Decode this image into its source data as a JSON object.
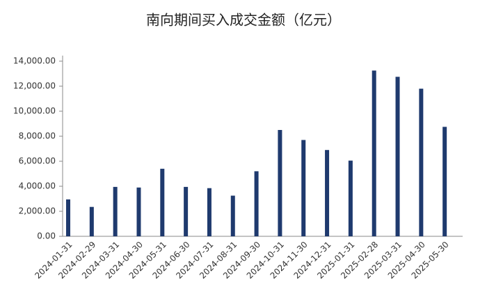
{
  "chart_data": {
    "type": "bar",
    "title": "南向期间买入成交金额（亿元）",
    "categories": [
      "2024-01-31",
      "2024-02-29",
      "2024-03-31",
      "2024-04-30",
      "2024-05-31",
      "2024-06-30",
      "2024-07-31",
      "2024-08-31",
      "2024-09-30",
      "2024-10-31",
      "2024-11-30",
      "2024-12-31",
      "2025-01-31",
      "2025-02-28",
      "2025-03-31",
      "2025-04-30",
      "2025-05-30"
    ],
    "values": [
      2950,
      2350,
      3950,
      3900,
      5400,
      3950,
      3850,
      3250,
      5200,
      8500,
      7700,
      6900,
      6050,
      13250,
      12750,
      11800,
      8750
    ],
    "color": "#1f3a6e",
    "ylim": [
      0,
      14000
    ],
    "yticks": [
      {
        "value": 0,
        "label": "0.00"
      },
      {
        "value": 2000,
        "label": "2,000.00"
      },
      {
        "value": 4000,
        "label": "4,000.00"
      },
      {
        "value": 6000,
        "label": "6,000.00"
      },
      {
        "value": 8000,
        "label": "8,000.00"
      },
      {
        "value": 10000,
        "label": "10,000.00"
      },
      {
        "value": 12000,
        "label": "12,000.00"
      },
      {
        "value": 14000,
        "label": "14,000.00"
      }
    ],
    "grid": false
  }
}
